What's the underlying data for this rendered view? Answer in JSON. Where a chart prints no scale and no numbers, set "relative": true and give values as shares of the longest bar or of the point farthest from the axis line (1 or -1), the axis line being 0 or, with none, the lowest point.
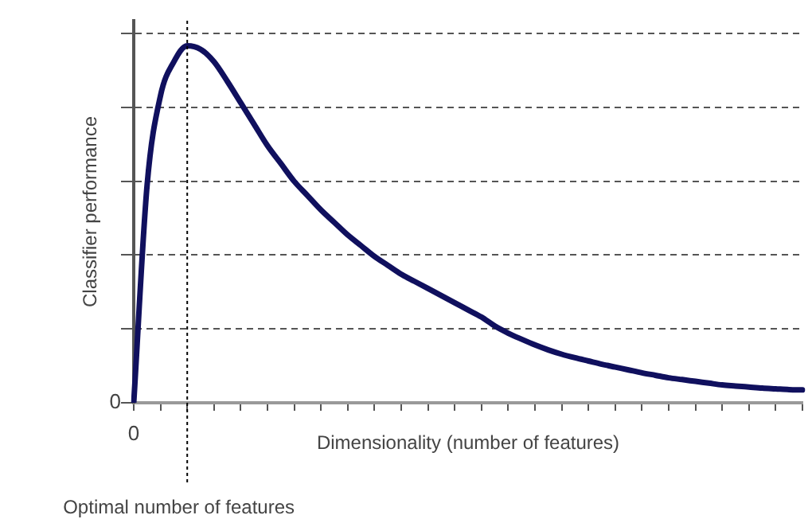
{
  "chart_data": {
    "type": "line",
    "xlabel": "Dimensionality (number of features)",
    "ylabel": "Classifier performance",
    "relative": true,
    "categories": [
      null,
      null,
      null,
      null,
      null,
      null,
      null,
      null,
      null,
      null,
      null,
      null,
      null,
      null,
      null,
      null,
      null,
      null,
      null,
      null,
      null,
      null,
      null,
      null,
      null,
      null,
      null,
      null,
      null,
      null,
      null,
      null,
      null,
      null,
      null,
      null,
      null,
      null,
      null,
      null,
      null,
      null,
      null,
      null,
      null,
      null,
      null,
      null,
      null,
      null,
      null
    ],
    "series": [
      {
        "color": "#10105e",
        "values": [
          0,
          0.61,
          0.86,
          0.955,
          1,
          0.99,
          0.955,
          0.9,
          0.84,
          0.78,
          0.72,
          0.67,
          0.62,
          0.58,
          0.54,
          0.505,
          0.47,
          0.44,
          0.41,
          0.385,
          0.36,
          0.34,
          0.32,
          0.3,
          0.28,
          0.26,
          0.24,
          0.215,
          0.195,
          0.178,
          0.162,
          0.148,
          0.136,
          0.126,
          0.117,
          0.108,
          0.1,
          0.092,
          0.084,
          0.077,
          0.07,
          0.065,
          0.06,
          0.055,
          0.05,
          0.047,
          0.044,
          0.041,
          0.039,
          0.037,
          0.036
        ]
      }
    ],
    "annotations": [
      "0",
      "0"
    ],
    "ref_lines": [
      {
        "axis": "x",
        "label": "Optimal number of features",
        "line_style": "dotted"
      }
    ],
    "grid": "y",
    "legend": false,
    "marker": "none",
    "line_style": "solid"
  }
}
